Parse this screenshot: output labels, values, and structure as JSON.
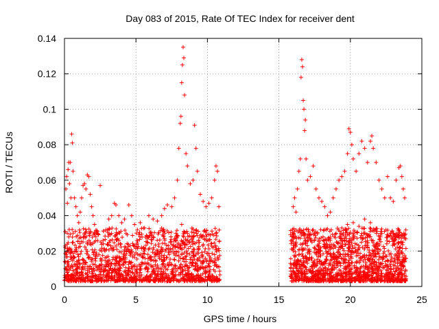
{
  "chart_data": {
    "type": "scatter",
    "title": "Day 083 of 2015, Rate Of TEC Index for receiver dent",
    "xlabel": "GPS time / hours",
    "ylabel": "ROTI / TECUs",
    "xlim": [
      0,
      25
    ],
    "ylim": [
      0,
      0.14
    ],
    "xticks": [
      0,
      5,
      10,
      15,
      20,
      25
    ],
    "xtick_labels": [
      "0",
      "5",
      "10",
      "15",
      "20",
      "25"
    ],
    "yticks": [
      0,
      0.02,
      0.04,
      0.06,
      0.08,
      0.1,
      0.12,
      0.14
    ],
    "ytick_labels": [
      "0",
      "0.02",
      "0.04",
      "0.06",
      "0.08",
      "0.1",
      "0.12",
      "0.14"
    ],
    "grid": true,
    "marker": "+",
    "color": "#ff0000",
    "data_gap_hours": [
      10.9,
      15.8
    ],
    "series": [
      {
        "points": [
          [
            0.05,
            0.031
          ],
          [
            0.1,
            0.055
          ],
          [
            0.15,
            0.062
          ],
          [
            0.2,
            0.047
          ],
          [
            0.25,
            0.066
          ],
          [
            0.3,
            0.07
          ],
          [
            0.35,
            0.058
          ],
          [
            0.4,
            0.07
          ],
          [
            0.45,
            0.05
          ],
          [
            0.5,
            0.086
          ],
          [
            0.55,
            0.081
          ],
          [
            0.6,
            0.065
          ],
          [
            0.7,
            0.05
          ],
          [
            0.8,
            0.045
          ],
          [
            0.9,
            0.04
          ],
          [
            1.0,
            0.036
          ],
          [
            1.1,
            0.042
          ],
          [
            1.2,
            0.05
          ],
          [
            1.3,
            0.057
          ],
          [
            1.4,
            0.058
          ],
          [
            1.5,
            0.055
          ],
          [
            1.6,
            0.063
          ],
          [
            1.7,
            0.062
          ],
          [
            1.8,
            0.052
          ],
          [
            1.9,
            0.045
          ],
          [
            2.0,
            0.04
          ],
          [
            2.1,
            0.035
          ],
          [
            2.2,
            0.028
          ],
          [
            2.3,
            0.03
          ],
          [
            2.5,
            0.057
          ],
          [
            2.7,
            0.026
          ],
          [
            2.9,
            0.032
          ],
          [
            3.1,
            0.038
          ],
          [
            3.3,
            0.04
          ],
          [
            3.5,
            0.047
          ],
          [
            3.6,
            0.046
          ],
          [
            3.8,
            0.04
          ],
          [
            4.0,
            0.036
          ],
          [
            4.2,
            0.038
          ],
          [
            4.5,
            0.046
          ],
          [
            4.7,
            0.04
          ],
          [
            4.9,
            0.035
          ],
          [
            5.1,
            0.032
          ],
          [
            5.3,
            0.036
          ],
          [
            5.6,
            0.033
          ],
          [
            5.9,
            0.04
          ],
          [
            6.2,
            0.038
          ],
          [
            6.5,
            0.037
          ],
          [
            6.8,
            0.04
          ],
          [
            7.0,
            0.044
          ],
          [
            7.2,
            0.046
          ],
          [
            7.5,
            0.045
          ],
          [
            7.7,
            0.05
          ],
          [
            7.9,
            0.06
          ],
          [
            8.0,
            0.078
          ],
          [
            8.1,
            0.092
          ],
          [
            8.15,
            0.096
          ],
          [
            8.2,
            0.115
          ],
          [
            8.25,
            0.125
          ],
          [
            8.3,
            0.135
          ],
          [
            8.35,
            0.129
          ],
          [
            8.4,
            0.108
          ],
          [
            8.5,
            0.075
          ],
          [
            8.6,
            0.068
          ],
          [
            8.8,
            0.058
          ],
          [
            9.0,
            0.06
          ],
          [
            9.1,
            0.091
          ],
          [
            9.2,
            0.078
          ],
          [
            9.3,
            0.065
          ],
          [
            9.5,
            0.052
          ],
          [
            9.7,
            0.048
          ],
          [
            9.9,
            0.045
          ],
          [
            10.1,
            0.047
          ],
          [
            10.3,
            0.05
          ],
          [
            10.5,
            0.06
          ],
          [
            10.6,
            0.068
          ],
          [
            10.7,
            0.065
          ],
          [
            10.8,
            0.045
          ],
          [
            0.2,
            0.02
          ],
          [
            0.6,
            0.025
          ],
          [
            1.0,
            0.022
          ],
          [
            1.4,
            0.03
          ],
          [
            1.8,
            0.025
          ],
          [
            2.2,
            0.018
          ],
          [
            2.6,
            0.02
          ],
          [
            3.0,
            0.024
          ],
          [
            3.4,
            0.022
          ],
          [
            3.8,
            0.026
          ],
          [
            4.2,
            0.02
          ],
          [
            4.6,
            0.023
          ],
          [
            5.0,
            0.019
          ],
          [
            5.4,
            0.022
          ],
          [
            5.8,
            0.025
          ],
          [
            6.2,
            0.021
          ],
          [
            6.6,
            0.024
          ],
          [
            7.0,
            0.027
          ],
          [
            7.4,
            0.025
          ],
          [
            7.8,
            0.03
          ],
          [
            8.2,
            0.035
          ],
          [
            8.6,
            0.03
          ],
          [
            9.0,
            0.028
          ],
          [
            9.4,
            0.025
          ],
          [
            9.8,
            0.027
          ],
          [
            10.2,
            0.029
          ],
          [
            10.6,
            0.03
          ],
          [
            0.1,
            0.01
          ],
          [
            0.5,
            0.012
          ],
          [
            0.9,
            0.008
          ],
          [
            1.3,
            0.015
          ],
          [
            1.7,
            0.01
          ],
          [
            2.1,
            0.009
          ],
          [
            2.5,
            0.012
          ],
          [
            2.9,
            0.011
          ],
          [
            3.3,
            0.013
          ],
          [
            3.7,
            0.01
          ],
          [
            4.1,
            0.012
          ],
          [
            4.5,
            0.009
          ],
          [
            4.9,
            0.011
          ],
          [
            5.3,
            0.01
          ],
          [
            5.7,
            0.013
          ],
          [
            6.1,
            0.011
          ],
          [
            6.5,
            0.012
          ],
          [
            6.9,
            0.014
          ],
          [
            7.3,
            0.012
          ],
          [
            7.7,
            0.015
          ],
          [
            8.1,
            0.016
          ],
          [
            8.5,
            0.014
          ],
          [
            8.9,
            0.013
          ],
          [
            9.3,
            0.012
          ],
          [
            9.7,
            0.014
          ],
          [
            10.1,
            0.013
          ],
          [
            10.5,
            0.012
          ],
          [
            10.8,
            0.011
          ],
          [
            16.0,
            0.045
          ],
          [
            16.1,
            0.05
          ],
          [
            16.2,
            0.042
          ],
          [
            16.3,
            0.055
          ],
          [
            16.4,
            0.065
          ],
          [
            16.5,
            0.072
          ],
          [
            16.55,
            0.118
          ],
          [
            16.6,
            0.128
          ],
          [
            16.65,
            0.124
          ],
          [
            16.7,
            0.105
          ],
          [
            16.75,
            0.1
          ],
          [
            16.8,
            0.088
          ],
          [
            16.85,
            0.094
          ],
          [
            16.9,
            0.072
          ],
          [
            17.0,
            0.06
          ],
          [
            17.2,
            0.062
          ],
          [
            17.4,
            0.068
          ],
          [
            17.6,
            0.055
          ],
          [
            17.8,
            0.05
          ],
          [
            18.0,
            0.048
          ],
          [
            18.2,
            0.045
          ],
          [
            18.4,
            0.04
          ],
          [
            18.6,
            0.042
          ],
          [
            18.8,
            0.05
          ],
          [
            19.0,
            0.055
          ],
          [
            19.2,
            0.06
          ],
          [
            19.4,
            0.062
          ],
          [
            19.6,
            0.065
          ],
          [
            19.8,
            0.075
          ],
          [
            19.9,
            0.089
          ],
          [
            20.0,
            0.087
          ],
          [
            20.1,
            0.08
          ],
          [
            20.2,
            0.072
          ],
          [
            20.4,
            0.065
          ],
          [
            20.6,
            0.075
          ],
          [
            20.8,
            0.082
          ],
          [
            21.0,
            0.078
          ],
          [
            21.2,
            0.07
          ],
          [
            21.4,
            0.082
          ],
          [
            21.5,
            0.085
          ],
          [
            21.6,
            0.078
          ],
          [
            21.8,
            0.07
          ],
          [
            22.0,
            0.06
          ],
          [
            22.2,
            0.055
          ],
          [
            22.4,
            0.05
          ],
          [
            22.6,
            0.062
          ],
          [
            22.8,
            0.05
          ],
          [
            23.0,
            0.048
          ],
          [
            23.2,
            0.06
          ],
          [
            23.4,
            0.067
          ],
          [
            23.5,
            0.068
          ],
          [
            23.6,
            0.062
          ],
          [
            23.7,
            0.055
          ],
          [
            23.8,
            0.05
          ],
          [
            16.2,
            0.025
          ],
          [
            16.6,
            0.03
          ],
          [
            17.0,
            0.028
          ],
          [
            17.4,
            0.032
          ],
          [
            17.8,
            0.026
          ],
          [
            18.2,
            0.024
          ],
          [
            18.6,
            0.027
          ],
          [
            19.0,
            0.03
          ],
          [
            19.4,
            0.033
          ],
          [
            19.8,
            0.035
          ],
          [
            20.2,
            0.036
          ],
          [
            20.6,
            0.034
          ],
          [
            21.0,
            0.038
          ],
          [
            21.4,
            0.036
          ],
          [
            21.8,
            0.032
          ],
          [
            22.2,
            0.03
          ],
          [
            22.6,
            0.028
          ],
          [
            23.0,
            0.03
          ],
          [
            23.4,
            0.032
          ],
          [
            23.8,
            0.027
          ],
          [
            16.1,
            0.012
          ],
          [
            16.5,
            0.01
          ],
          [
            16.9,
            0.014
          ],
          [
            17.3,
            0.011
          ],
          [
            17.7,
            0.013
          ],
          [
            18.1,
            0.01
          ],
          [
            18.5,
            0.012
          ],
          [
            18.9,
            0.014
          ],
          [
            19.3,
            0.013
          ],
          [
            19.7,
            0.015
          ],
          [
            20.1,
            0.016
          ],
          [
            20.5,
            0.014
          ],
          [
            20.9,
            0.017
          ],
          [
            21.3,
            0.015
          ],
          [
            21.7,
            0.014
          ],
          [
            22.1,
            0.013
          ],
          [
            22.5,
            0.012
          ],
          [
            22.9,
            0.014
          ],
          [
            23.3,
            0.013
          ],
          [
            23.7,
            0.012
          ]
        ]
      }
    ]
  }
}
